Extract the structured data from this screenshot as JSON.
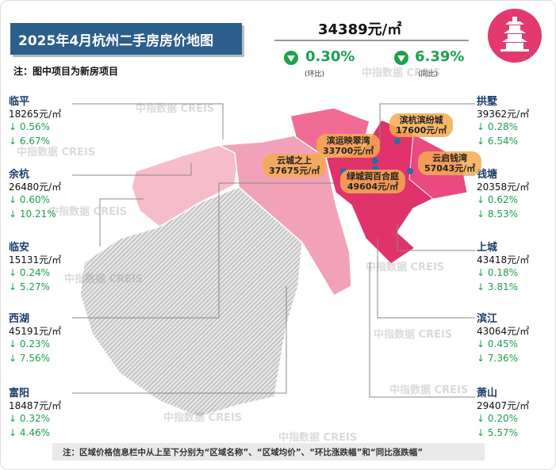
{
  "header": {
    "title": "2025年4月杭州二手房房价地图",
    "note": "注：图中项目为新房项目"
  },
  "summary": {
    "price": "34389元/㎡",
    "mom": "0.30%",
    "mom_label": "(环比)",
    "yoy": "6.39%",
    "yoy_label": "(同比)"
  },
  "districts_left": [
    {
      "name": "临平",
      "price": "18265元/㎡",
      "mom": "↓ 0.56%",
      "yoy": "↓ 6.67%"
    },
    {
      "name": "余杭",
      "price": "26480元/㎡",
      "mom": "↓ 0.60%",
      "yoy": "↓ 10.21%"
    },
    {
      "name": "临安",
      "price": "15131元/㎡",
      "mom": "↓ 0.24%",
      "yoy": "↓ 5.27%"
    },
    {
      "name": "西湖",
      "price": "45191元/㎡",
      "mom": "↓ 0.23%",
      "yoy": "↓ 7.56%"
    },
    {
      "name": "富阳",
      "price": "18487元/㎡",
      "mom": "↓ 0.32%",
      "yoy": "↓ 4.46%"
    }
  ],
  "districts_right": [
    {
      "name": "拱墅",
      "price": "39362元/㎡",
      "mom": "↓ 0.28%",
      "yoy": "↓ 6.54%"
    },
    {
      "name": "钱塘",
      "price": "20358元/㎡",
      "mom": "↓ 0.62%",
      "yoy": "↓ 8.53%"
    },
    {
      "name": "上城",
      "price": "43418元/㎡",
      "mom": "↓ 0.18%",
      "yoy": "↓ 3.81%"
    },
    {
      "name": "滨江",
      "price": "43064元/㎡",
      "mom": "↓ 0.45%",
      "yoy": "↓ 7.36%"
    },
    {
      "name": "萧山",
      "price": "29407元/㎡",
      "mom": "↓ 0.20%",
      "yoy": "↓ 5.57%"
    }
  ],
  "projects": [
    {
      "name": "滨杭滨纷城",
      "price": "17600元/㎡"
    },
    {
      "name": "滨运映翠湾",
      "price": "33700元/㎡"
    },
    {
      "name": "云城之上",
      "price": "37675元/㎡"
    },
    {
      "name": "云启钱湾",
      "price": "57043元/㎡"
    },
    {
      "name": "绿城润百合庭",
      "price": "49604元/㎡"
    }
  ],
  "watermark": "中指数据 CREIS",
  "footer": "注：区域价格信息栏中从上至下分别为“区域名称”、“区域均价”、“环比涨跌幅”和“同比涨跌幅”"
}
